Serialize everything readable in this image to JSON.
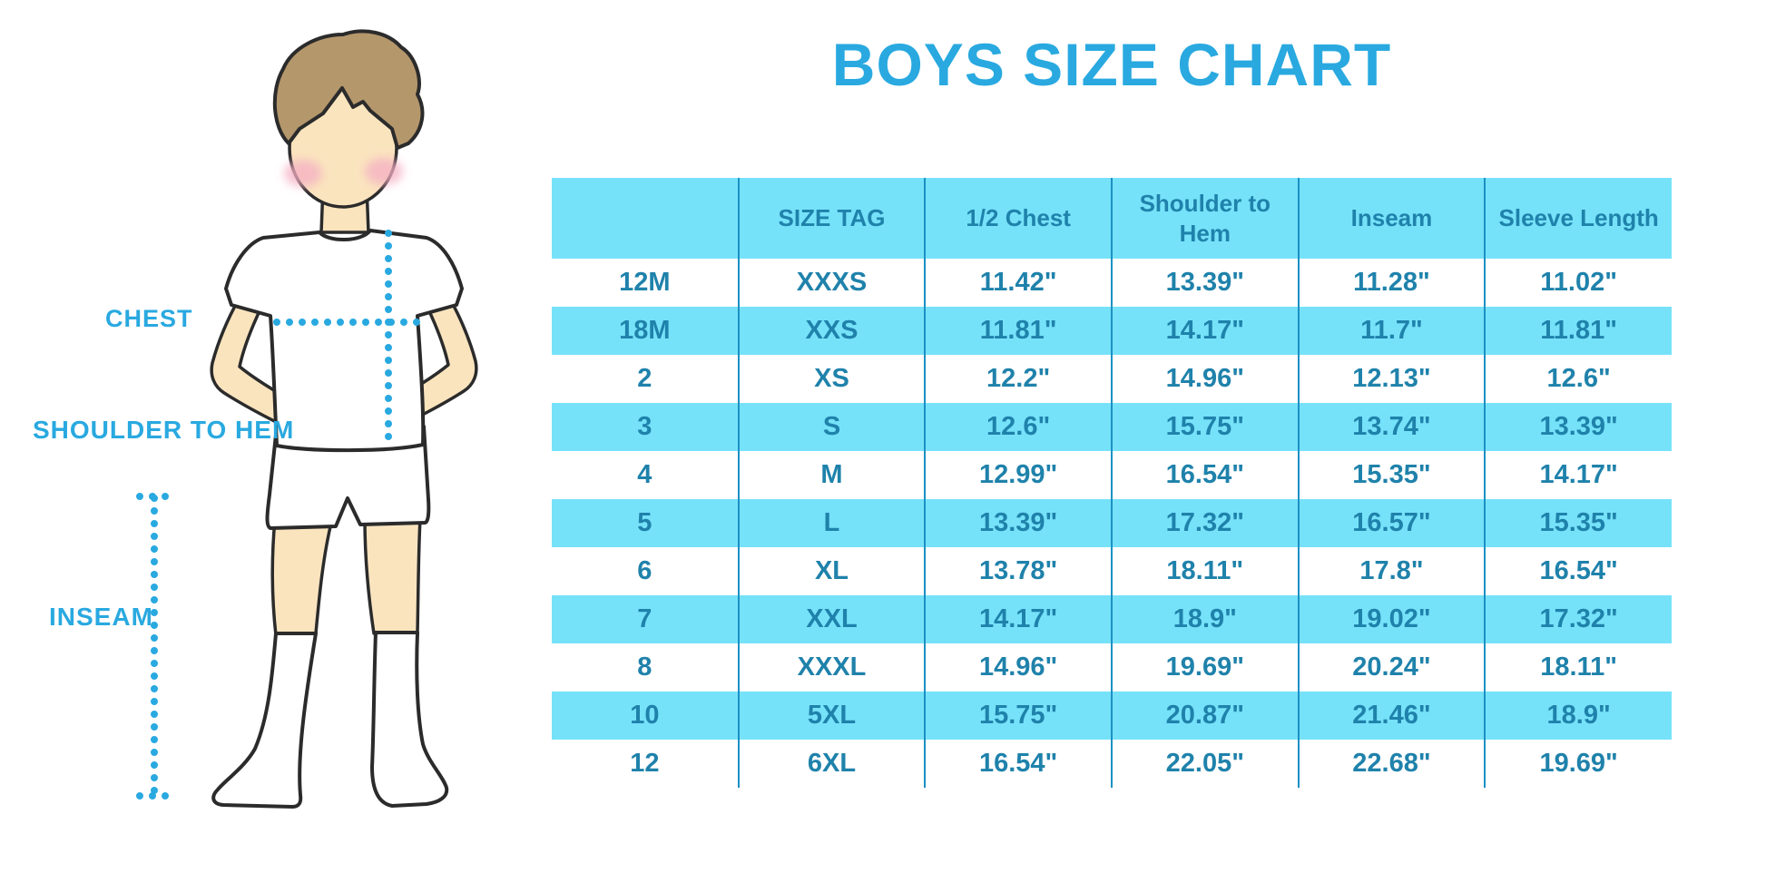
{
  "chart_data": {
    "type": "table",
    "title": "BOYS SIZE CHART",
    "columns": [
      "",
      "SIZE TAG",
      "1/2 Chest",
      "Shoulder to Hem",
      "Inseam",
      "Sleeve Length"
    ],
    "rows": [
      [
        "12M",
        "XXXS",
        "11.42\"",
        "13.39\"",
        "11.28\"",
        "11.02\""
      ],
      [
        "18M",
        "XXS",
        "11.81\"",
        "14.17\"",
        "11.7\"",
        "11.81\""
      ],
      [
        "2",
        "XS",
        "12.2\"",
        "14.96\"",
        "12.13\"",
        "12.6\""
      ],
      [
        "3",
        "S",
        "12.6\"",
        "15.75\"",
        "13.74\"",
        "13.39\""
      ],
      [
        "4",
        "M",
        "12.99\"",
        "16.54\"",
        "15.35\"",
        "14.17\""
      ],
      [
        "5",
        "L",
        "13.39\"",
        "17.32\"",
        "16.57\"",
        "15.35\""
      ],
      [
        "6",
        "XL",
        "13.78\"",
        "18.11\"",
        "17.8\"",
        "16.54\""
      ],
      [
        "7",
        "XXL",
        "14.17\"",
        "18.9\"",
        "19.02\"",
        "17.32\""
      ],
      [
        "8",
        "XXXL",
        "14.96\"",
        "19.69\"",
        "20.24\"",
        "18.11\""
      ],
      [
        "10",
        "5XL",
        "15.75\"",
        "20.87\"",
        "21.46\"",
        "18.9\""
      ],
      [
        "12",
        "6XL",
        "16.54\"",
        "22.05\"",
        "22.68\"",
        "19.69\""
      ]
    ],
    "layout": {
      "row_banding": "alternating white and light blue",
      "grid": "vertical dividers only",
      "units": "inches"
    }
  },
  "figure": {
    "labels": {
      "chest": "CHEST",
      "shoulder_to_hem": "SHOULDER TO HEM",
      "inseam": "INSEAM"
    }
  },
  "colors": {
    "accent": "#29A9E0",
    "band": "#76E2F9",
    "divider": "#1B90C4",
    "cell_text": "#1F82AB",
    "skin": "#FAE4BE",
    "hair": "#B5976C",
    "outline": "#2B2B2B",
    "blush": "#F5AFC4"
  }
}
